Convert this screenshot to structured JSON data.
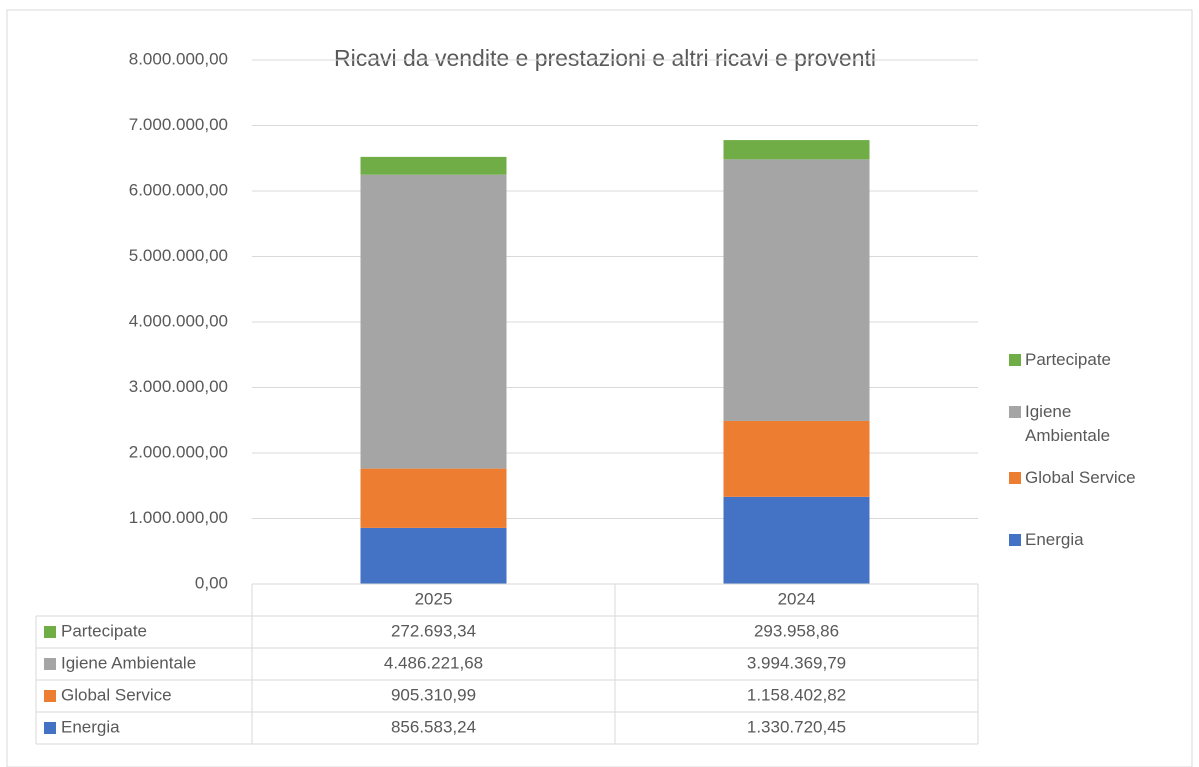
{
  "chart_data": {
    "type": "stacked_bar",
    "title": "Ricavi da vendite e prestazioni e altri ricavi e proventi",
    "categories": [
      "2025",
      "2024"
    ],
    "series": [
      {
        "name": "Energia",
        "color": "#4472c4",
        "values": [
          856583.24,
          1330720.45
        ],
        "value_labels": [
          "856.583,24",
          "1.330.720,45"
        ]
      },
      {
        "name": "Global Service",
        "color": "#ed7d31",
        "values": [
          905310.99,
          1158402.82
        ],
        "value_labels": [
          "905.310,99",
          "1.158.402,82"
        ]
      },
      {
        "name": "Igiene Ambientale",
        "color": "#a5a5a5",
        "values": [
          4486221.68,
          3994369.79
        ],
        "value_labels": [
          "4.486.221,68",
          "3.994.369,79"
        ]
      },
      {
        "name": "Partecipate",
        "color": "#70ad47",
        "values": [
          272693.34,
          293958.86
        ],
        "value_labels": [
          "272.693,34",
          "293.958,86"
        ]
      }
    ],
    "ylim": [
      0,
      8000000
    ],
    "yticks": [
      {
        "value": 0,
        "label": "0,00"
      },
      {
        "value": 1000000,
        "label": "1.000.000,00"
      },
      {
        "value": 2000000,
        "label": "2.000.000,00"
      },
      {
        "value": 3000000,
        "label": "3.000.000,00"
      },
      {
        "value": 4000000,
        "label": "4.000.000,00"
      },
      {
        "value": 5000000,
        "label": "5.000.000,00"
      },
      {
        "value": 6000000,
        "label": "6.000.000,00"
      },
      {
        "value": 7000000,
        "label": "7.000.000,00"
      },
      {
        "value": 8000000,
        "label": "8.000.000,00"
      }
    ],
    "grid": true,
    "legend": "right"
  }
}
